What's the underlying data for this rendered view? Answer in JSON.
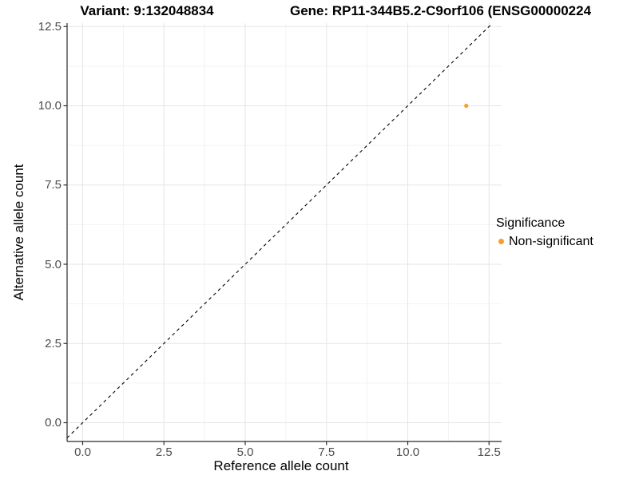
{
  "chart_data": {
    "type": "scatter",
    "titles": {
      "left": "Variant: 9:132048834",
      "right": "Gene: RP11-344B5.2-C9orf106 (ENSG00000224"
    },
    "xlabel": "Reference allele count",
    "ylabel": "Alternative allele count",
    "xticks": [
      "0.0",
      "2.5",
      "5.0",
      "7.5",
      "10.0",
      "12.5"
    ],
    "yticks": [
      "0.0",
      "2.5",
      "5.0",
      "7.5",
      "10.0",
      "12.5"
    ],
    "xlim": [
      -0.5,
      12.9
    ],
    "ylim": [
      -0.6,
      12.6
    ],
    "grid": {
      "major": true,
      "minor": true
    },
    "points": [
      {
        "x": 11.8,
        "y": 10.0,
        "significance": "Non-significant"
      }
    ],
    "identity_line": {
      "style": "dashed",
      "equation": "y = x",
      "color": "#000000"
    },
    "legend": {
      "title": "Significance",
      "position": "right",
      "items": [
        {
          "label": "Non-significant",
          "color": "#FA9E28"
        }
      ]
    },
    "colors": {
      "background": "#FFFFFF",
      "point": "#FA9E28",
      "grid_major": "#E5E5E5",
      "grid_minor": "#F2F2F2",
      "axis_line": "#2B2B2B",
      "tick_label": "#4D4D4D",
      "title_text": "#000000"
    }
  }
}
